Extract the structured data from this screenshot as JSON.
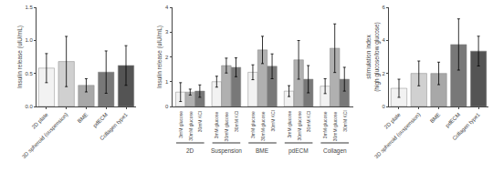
{
  "chart_data": [
    {
      "type": "bar",
      "ylabel": "Insulin release (uIU/mL)",
      "categories": [
        "2D plate",
        "3D spheroid (suspension)",
        "BME",
        "pdECM",
        "Collagen type1"
      ],
      "values": [
        0.58,
        0.68,
        0.32,
        0.52,
        0.62
      ],
      "errors": [
        0.22,
        0.38,
        0.1,
        0.32,
        0.3
      ],
      "colors": [
        "#f2f2f2",
        "#d0d0d0",
        "#a8a8a8",
        "#787878",
        "#545454"
      ],
      "ylim": [
        0,
        1.5
      ],
      "yticks": [
        {
          "value": 0.0,
          "label": "0.0"
        },
        0.5,
        {
          "value": 1.0,
          "label": "1.0"
        },
        1.5
      ],
      "grid": false
    },
    {
      "type": "bar",
      "ylabel": "Insulin release (uIU/mL)",
      "categories": [
        "2D",
        "Suspension",
        "BME",
        "pdECM",
        "Collagen"
      ],
      "series": [
        {
          "name": "3mM glucose",
          "color": "#f2f2f2",
          "values": [
            0.58,
            1.0,
            1.38,
            0.62,
            0.82
          ],
          "errors": [
            0.38,
            0.22,
            0.3,
            0.22,
            0.3
          ]
        },
        {
          "name": "30mM glucose",
          "color": "#b0b0b0",
          "values": [
            0.58,
            1.65,
            2.28,
            1.88,
            2.35
          ],
          "errors": [
            0.12,
            0.3,
            0.55,
            0.78,
            0.98
          ]
        },
        {
          "name": "30mM KCl",
          "color": "#787878",
          "values": [
            0.62,
            1.58,
            1.62,
            1.1,
            1.1
          ],
          "errors": [
            0.25,
            0.38,
            0.5,
            0.55,
            0.48
          ]
        }
      ],
      "ylim": [
        0,
        4
      ],
      "yticks": [
        0,
        1,
        2,
        3,
        4
      ],
      "tick_labels": "y",
      "grid": false
    },
    {
      "type": "bar",
      "ylabel": "stimulation index\n(high glucose/low glucose)",
      "categories": [
        "2D plate",
        "3D spheroid (suspension)",
        "BME",
        "pdECM",
        "Collagen type1"
      ],
      "values": [
        1.1,
        2.0,
        2.0,
        3.75,
        3.35
      ],
      "errors": [
        0.55,
        0.75,
        0.68,
        1.55,
        0.9
      ],
      "colors": [
        "#f2f2f2",
        "#d0d0d0",
        "#a8a8a8",
        "#787878",
        "#545454"
      ],
      "ylim": [
        0,
        6
      ],
      "yticks": [
        0,
        2,
        4,
        6
      ],
      "grid": false
    }
  ]
}
